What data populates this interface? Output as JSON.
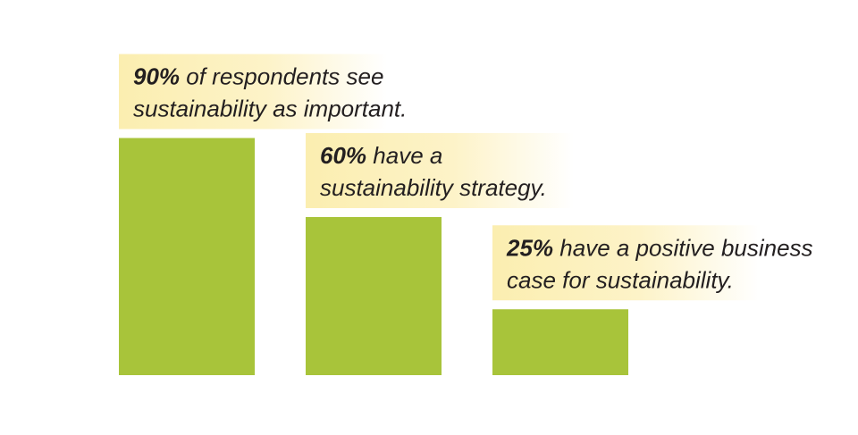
{
  "chart_data": {
    "type": "bar",
    "title": "",
    "xlabel": "",
    "ylabel": "",
    "ylim": [
      0,
      100
    ],
    "grid": false,
    "axes_visible": false,
    "categories": [
      "sees sustainability as important",
      "has a sustainability strategy",
      "has a positive business case for sustainability"
    ],
    "values": [
      90,
      60,
      25
    ],
    "annotations": [
      {
        "percent_label": "90%",
        "line1": " of respondents see",
        "line2": "sustainability as important."
      },
      {
        "percent_label": "60%",
        "line1": " have a",
        "line2": "sustainability strategy."
      },
      {
        "percent_label": "25%",
        "line1": " have a positive business",
        "line2": "case for sustainability."
      }
    ]
  },
  "colors": {
    "bar": "#a8c43a",
    "callout_start": "#fbeeb0",
    "callout_end": "#ffffff",
    "text": "#231f20"
  }
}
